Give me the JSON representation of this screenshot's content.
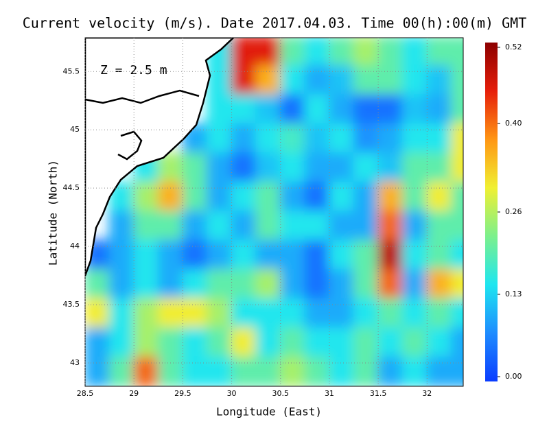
{
  "chart_data": {
    "type": "heatmap",
    "title": "Current velocity (m/s). Date 2017.04.03. Time 00(h):00(m) GMT",
    "annotation": "Z = 2.5 m",
    "x_label": "Longitude (East)",
    "y_label": "Latitude (North)",
    "xlim": [
      28.5,
      32.37
    ],
    "ylim": [
      42.8,
      45.79
    ],
    "xticks": [
      28.5,
      29,
      29.5,
      30,
      30.5,
      31,
      31.5,
      32
    ],
    "yticks": [
      43,
      43.5,
      44,
      44.5,
      45,
      45.5
    ],
    "grid": true,
    "clim": [
      0,
      0.52
    ],
    "cticks": [
      {
        "value": 0,
        "label": "0.00"
      },
      0.13,
      0.26,
      {
        "value": 0.4,
        "label": "0.40"
      },
      0.52
    ],
    "colormap": [
      "#0a3cff",
      "#1e8cff",
      "#1ee6f0",
      "#7cf08c",
      "#f0f032",
      "#ff9614",
      "#e61e0a",
      "#8c0000"
    ],
    "lon": [
      28.625,
      28.875,
      29.125,
      29.375,
      29.625,
      29.875,
      30.125,
      30.375,
      30.625,
      30.875,
      31.125,
      31.375,
      31.625,
      31.875,
      32.125,
      32.375
    ],
    "lat": [
      45.675,
      45.425,
      45.175,
      44.925,
      44.675,
      44.425,
      44.175,
      43.925,
      43.675,
      43.425,
      43.175,
      42.925
    ],
    "speed": [
      [
        null,
        null,
        null,
        null,
        null,
        0.15,
        0.45,
        0.45,
        0.2,
        0.15,
        0.2,
        0.25,
        0.2,
        0.15,
        0.2,
        0.2
      ],
      [
        null,
        null,
        null,
        null,
        null,
        0.15,
        0.45,
        0.35,
        0.15,
        0.1,
        0.12,
        0.2,
        0.2,
        0.15,
        0.12,
        0.2
      ],
      [
        null,
        null,
        null,
        null,
        null,
        0.15,
        0.15,
        0.12,
        0.05,
        0.15,
        0.1,
        0.05,
        0.05,
        0.12,
        0.1,
        0.2
      ],
      [
        null,
        null,
        null,
        null,
        0.1,
        0.15,
        0.1,
        0.15,
        0.18,
        0.12,
        0.15,
        0.08,
        0.1,
        0.15,
        0.15,
        0.3
      ],
      [
        null,
        null,
        0.15,
        0.25,
        0.2,
        0.1,
        0.05,
        0.12,
        0.15,
        0.1,
        0.1,
        0.15,
        0.12,
        0.2,
        0.2,
        0.3
      ],
      [
        null,
        0.15,
        0.25,
        0.35,
        0.2,
        0.1,
        0.15,
        0.2,
        0.1,
        0.05,
        0.15,
        0.1,
        0.35,
        0.2,
        0.3,
        0.2
      ],
      [
        null,
        0.1,
        0.2,
        0.2,
        0.1,
        0.15,
        0.1,
        0.2,
        0.15,
        0.15,
        0.1,
        0.1,
        0.4,
        0.1,
        0.2,
        0.2
      ],
      [
        0.05,
        0.1,
        0.15,
        0.1,
        0.05,
        0.1,
        0.15,
        0.1,
        0.1,
        0.05,
        0.15,
        0.2,
        0.48,
        0.15,
        0.2,
        0.15
      ],
      [
        0.2,
        0.1,
        0.15,
        0.1,
        0.15,
        0.2,
        0.2,
        0.25,
        0.1,
        0.05,
        0.1,
        0.2,
        0.4,
        0.1,
        0.35,
        0.3
      ],
      [
        0.3,
        0.15,
        0.25,
        0.3,
        0.3,
        0.25,
        0.15,
        0.15,
        0.15,
        0.1,
        0.1,
        0.15,
        0.2,
        0.15,
        0.2,
        0.15
      ],
      [
        0.1,
        0.15,
        0.25,
        0.2,
        0.15,
        0.2,
        0.3,
        0.15,
        0.2,
        0.15,
        0.15,
        0.2,
        0.15,
        0.2,
        0.15,
        0.1
      ],
      [
        0.1,
        0.2,
        0.4,
        0.2,
        0.15,
        0.15,
        0.2,
        0.2,
        0.25,
        0.2,
        0.15,
        0.2,
        0.1,
        0.15,
        0.1,
        0.1
      ]
    ]
  }
}
